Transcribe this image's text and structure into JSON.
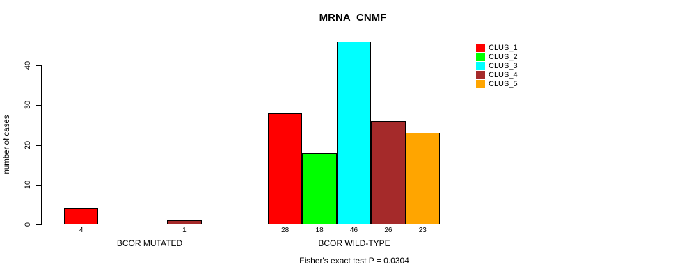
{
  "chart_data": {
    "type": "bar",
    "title": "MRNA_CNMF",
    "xlabel": "",
    "ylabel": "number of cases",
    "categories": [
      "BCOR MUTATED",
      "BCOR WILD-TYPE"
    ],
    "series": [
      {
        "name": "CLUS_1",
        "color": "#FF0000",
        "values": [
          4,
          28
        ]
      },
      {
        "name": "CLUS_2",
        "color": "#00FF00",
        "values": [
          0,
          18
        ]
      },
      {
        "name": "CLUS_3",
        "color": "#00FFFF",
        "values": [
          0,
          46
        ]
      },
      {
        "name": "CLUS_4",
        "color": "#A52A2A",
        "values": [
          1,
          26
        ]
      },
      {
        "name": "CLUS_5",
        "color": "#FFA500",
        "values": [
          0,
          23
        ]
      }
    ],
    "ylim": [
      0,
      46
    ],
    "yticks": [
      0,
      10,
      20,
      30,
      40
    ],
    "grid": false,
    "legend_position": "top-right",
    "bar_value_labels": "value shown under each nonzero bar",
    "annotation": "Fisher's exact test P = 0.0304"
  }
}
